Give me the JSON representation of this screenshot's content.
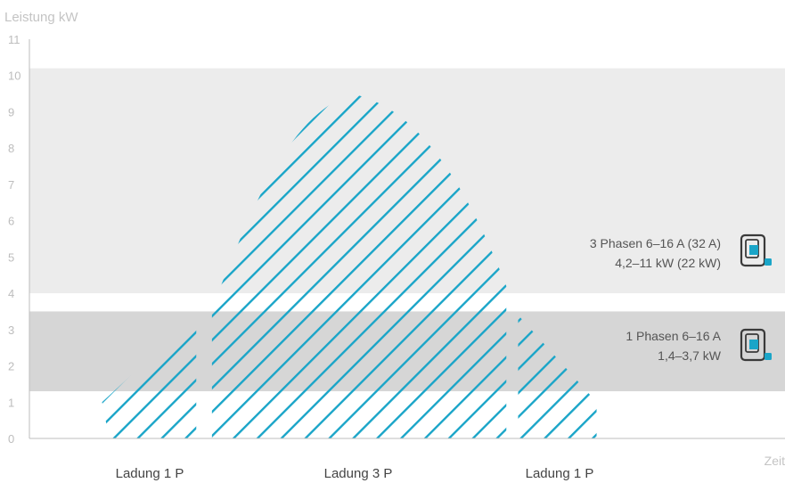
{
  "chart_data": {
    "type": "area",
    "ylabel": "Leistung kW",
    "xlabel": "Zeit",
    "ylim": [
      0,
      11
    ],
    "y_ticks": [
      "0",
      "1",
      "2",
      "3",
      "4",
      "5",
      "6",
      "7",
      "8",
      "9",
      "10",
      "11"
    ],
    "bands": [
      {
        "name": "3 Phasen",
        "line1": "3 Phasen 6–16 A (32 A)",
        "line2": "4,2–11 kW (22 kW)",
        "range": [
          4.0,
          10.2
        ],
        "color": "#ececec"
      },
      {
        "name": "1 Phasen",
        "line1": "1 Phasen 6–16 A",
        "line2": "1,4–3,7 kW",
        "range": [
          1.3,
          3.5
        ],
        "color": "#d6d6d6"
      }
    ],
    "segments": [
      {
        "label": "Ladung 1 P",
        "x": [
          0.13,
          0.25
        ],
        "y": [
          1.0,
          3.4
        ]
      },
      {
        "label": "Ladung 3 P",
        "x": [
          0.27,
          0.645
        ],
        "y": [
          0.0,
          9.5
        ]
      },
      {
        "label": "",
        "x": [
          0.66,
          0.76
        ],
        "y": [
          0.0,
          3.4
        ]
      }
    ],
    "x_labels": [
      "Ladung 1 P",
      "Ladung 3 P",
      "Ladung 1 P"
    ],
    "hatch_color": "#1aa5c8",
    "axis_color": "#bdbdbd",
    "text_color": "#555555",
    "tick_color": "#bdbdbd",
    "icon_color": "#1aa5c8"
  }
}
